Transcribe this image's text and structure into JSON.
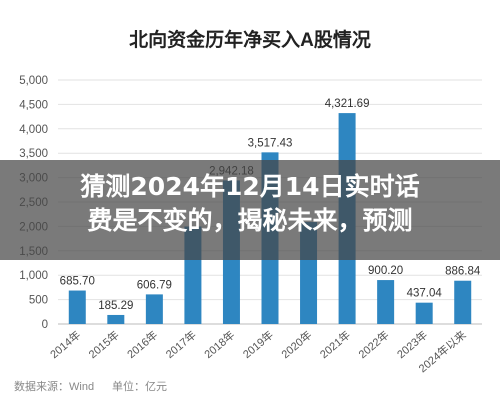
{
  "chart_data": {
    "type": "bar",
    "title": "北向资金历年净买入A股情况",
    "categories": [
      "2014年",
      "2015年",
      "2016年",
      "2017年",
      "2018年",
      "2019年",
      "2020年",
      "2021年",
      "2022年",
      "2023年",
      "2024年以来"
    ],
    "values": [
      685.7,
      185.29,
      606.79,
      1997,
      2942.18,
      3517.43,
      2089,
      4321.69,
      900.2,
      437.04,
      886.84
    ],
    "data_labels": [
      "685.70",
      "185.29",
      "606.79",
      "",
      "2,942.18",
      "3,517.43",
      "",
      "4,321.69",
      "900.20",
      "437.04",
      "886.84"
    ],
    "yticks": [
      "0",
      "500",
      "1,000",
      "1,500",
      "2,000",
      "2,500",
      "3,000",
      "3,500",
      "4,000",
      "4,500",
      "5,000"
    ],
    "ylim": [
      0,
      5000
    ],
    "xlabel": "",
    "ylabel": "",
    "grid": true,
    "bar_color": "#2e86c1",
    "source": "数据来源：Wind",
    "unit": "单位：亿元"
  },
  "overlay": {
    "line1": "猜测2024年12月14日实时话",
    "line2": "费是不变的，揭秘未来，预测"
  }
}
